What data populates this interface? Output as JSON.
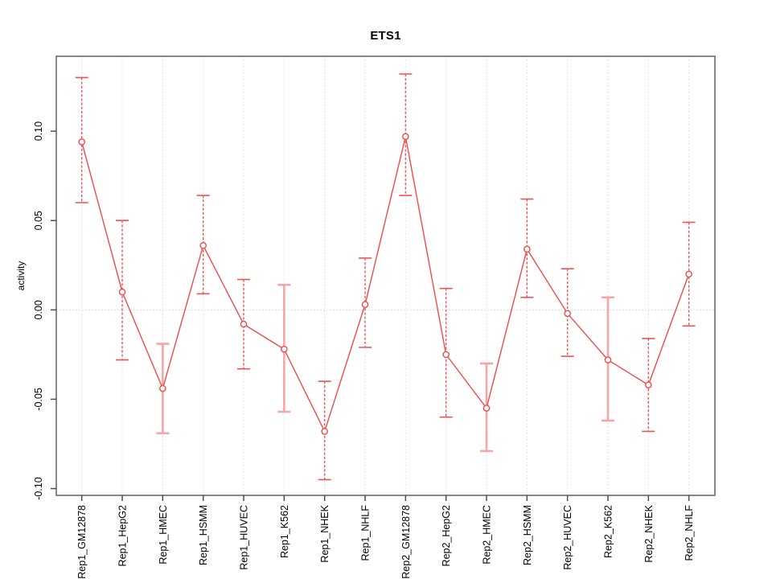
{
  "window": {
    "background": "#ffffff"
  },
  "chart_data": {
    "type": "line",
    "title": "ETS1",
    "xlabel": "",
    "ylabel": "activity",
    "legend": "none",
    "grid": "vertical dotted gridlines at each category; dotted horizontal line at y=0",
    "marker": "open-circle",
    "categories": [
      "Rep1_GM12878",
      "Rep1_HepG2",
      "Rep1_HMEC",
      "Rep1_HSMM",
      "Rep1_HUVEC",
      "Rep1_K562",
      "Rep1_NHEK",
      "Rep1_NHLF",
      "Rep2_GM12878",
      "Rep2_HepG2",
      "Rep2_HMEC",
      "Rep2_HSMM",
      "Rep2_HUVEC",
      "Rep2_K562",
      "Rep2_NHEK",
      "Rep2_NHLF"
    ],
    "series": [
      {
        "name": "activity",
        "values": [
          0.094,
          0.01,
          -0.044,
          0.036,
          -0.008,
          -0.022,
          -0.068,
          0.003,
          0.097,
          -0.025,
          -0.055,
          0.034,
          -0.002,
          -0.028,
          -0.042,
          0.02
        ],
        "lower": [
          0.06,
          -0.028,
          -0.069,
          0.009,
          -0.033,
          -0.057,
          -0.095,
          -0.021,
          0.064,
          -0.06,
          -0.079,
          0.007,
          -0.026,
          -0.062,
          -0.068,
          -0.009
        ],
        "upper": [
          0.13,
          0.05,
          -0.019,
          0.064,
          0.017,
          0.014,
          -0.04,
          0.029,
          0.132,
          0.012,
          -0.03,
          0.062,
          0.023,
          0.007,
          -0.016,
          0.049
        ]
      }
    ],
    "error_bar_styles": [
      "red",
      "red",
      "pink",
      "red",
      "red",
      "pink",
      "red",
      "red",
      "red",
      "red",
      "pink",
      "red",
      "red",
      "pink",
      "red",
      "red"
    ],
    "yticks": [
      -0.1,
      -0.05,
      0.0,
      0.05,
      0.1
    ],
    "ytick_labels": [
      "-0.10",
      "-0.05",
      "0.00",
      "0.05",
      "0.10"
    ],
    "ylim": [
      -0.1038,
      0.1419
    ],
    "colors": {
      "line": "#ee4b4b",
      "marker": "#ee4b4b",
      "error_bar_red": "#ef5454",
      "error_bar_pink": "#f7a6a6",
      "grid": "#dcdcdc",
      "zero_line": "#d4d4d4",
      "box": "#737373",
      "tick": "#4d4d4d",
      "text": "#000000"
    }
  }
}
